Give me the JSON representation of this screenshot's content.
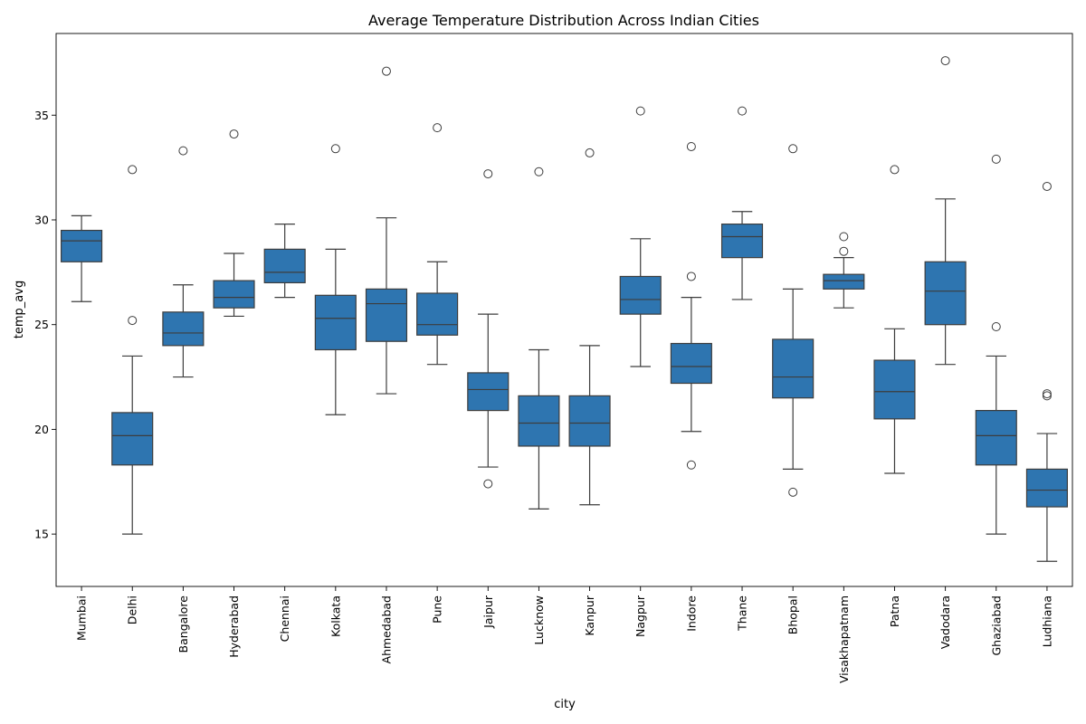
{
  "chart_data": {
    "type": "box",
    "title": "Average Temperature Distribution Across Indian Cities",
    "xlabel": "city",
    "ylabel": "temp_avg",
    "ylim": [
      12.5,
      38.9
    ],
    "yticks": [
      15,
      20,
      25,
      30,
      35
    ],
    "box_color": "#2e75b0",
    "line_color": "#3d3d3d",
    "grid": false,
    "categories": [
      "Mumbai",
      "Delhi",
      "Bangalore",
      "Hyderabad",
      "Chennai",
      "Kolkata",
      "Ahmedabad",
      "Pune",
      "Jaipur",
      "Lucknow",
      "Kanpur",
      "Nagpur",
      "Indore",
      "Thane",
      "Bhopal",
      "Visakhapatnam",
      "Patna",
      "Vadodara",
      "Ghaziabad",
      "Ludhiana"
    ],
    "boxes": [
      {
        "city": "Mumbai",
        "whisker_low": 26.1,
        "q1": 28.0,
        "median": 29.0,
        "q3": 29.5,
        "whisker_high": 30.2,
        "outliers": []
      },
      {
        "city": "Delhi",
        "whisker_low": 15.0,
        "q1": 18.3,
        "median": 19.7,
        "q3": 20.8,
        "whisker_high": 23.5,
        "outliers": [
          25.2,
          32.4
        ]
      },
      {
        "city": "Bangalore",
        "whisker_low": 22.5,
        "q1": 24.0,
        "median": 24.6,
        "q3": 25.6,
        "whisker_high": 26.9,
        "outliers": [
          33.3
        ]
      },
      {
        "city": "Hyderabad",
        "whisker_low": 25.4,
        "q1": 25.8,
        "median": 26.3,
        "q3": 27.1,
        "whisker_high": 28.4,
        "outliers": [
          34.1
        ]
      },
      {
        "city": "Chennai",
        "whisker_low": 26.3,
        "q1": 27.0,
        "median": 27.5,
        "q3": 28.6,
        "whisker_high": 29.8,
        "outliers": []
      },
      {
        "city": "Kolkata",
        "whisker_low": 20.7,
        "q1": 23.8,
        "median": 25.3,
        "q3": 26.4,
        "whisker_high": 28.6,
        "outliers": [
          33.4
        ]
      },
      {
        "city": "Ahmedabad",
        "whisker_low": 21.7,
        "q1": 24.2,
        "median": 26.0,
        "q3": 26.7,
        "whisker_high": 30.1,
        "outliers": [
          37.1
        ]
      },
      {
        "city": "Pune",
        "whisker_low": 23.1,
        "q1": 24.5,
        "median": 25.0,
        "q3": 26.5,
        "whisker_high": 28.0,
        "outliers": [
          34.4
        ]
      },
      {
        "city": "Jaipur",
        "whisker_low": 18.2,
        "q1": 20.9,
        "median": 21.9,
        "q3": 22.7,
        "whisker_high": 25.5,
        "outliers": [
          17.4,
          32.2
        ]
      },
      {
        "city": "Lucknow",
        "whisker_low": 16.2,
        "q1": 19.2,
        "median": 20.3,
        "q3": 21.6,
        "whisker_high": 23.8,
        "outliers": [
          32.3
        ]
      },
      {
        "city": "Kanpur",
        "whisker_low": 16.4,
        "q1": 19.2,
        "median": 20.3,
        "q3": 21.6,
        "whisker_high": 24.0,
        "outliers": [
          33.2
        ]
      },
      {
        "city": "Nagpur",
        "whisker_low": 23.0,
        "q1": 25.5,
        "median": 26.2,
        "q3": 27.3,
        "whisker_high": 29.1,
        "outliers": [
          35.2
        ]
      },
      {
        "city": "Indore",
        "whisker_low": 19.9,
        "q1": 22.2,
        "median": 23.0,
        "q3": 24.1,
        "whisker_high": 26.3,
        "outliers": [
          18.3,
          27.3,
          33.5
        ]
      },
      {
        "city": "Thane",
        "whisker_low": 26.2,
        "q1": 28.2,
        "median": 29.2,
        "q3": 29.8,
        "whisker_high": 30.4,
        "outliers": [
          35.2
        ]
      },
      {
        "city": "Bhopal",
        "whisker_low": 18.1,
        "q1": 21.5,
        "median": 22.5,
        "q3": 24.3,
        "whisker_high": 26.7,
        "outliers": [
          17.0,
          33.4
        ]
      },
      {
        "city": "Visakhapatnam",
        "whisker_low": 25.8,
        "q1": 26.7,
        "median": 27.1,
        "q3": 27.4,
        "whisker_high": 28.2,
        "outliers": [
          28.5,
          29.2
        ]
      },
      {
        "city": "Patna",
        "whisker_low": 17.9,
        "q1": 20.5,
        "median": 21.8,
        "q3": 23.3,
        "whisker_high": 24.8,
        "outliers": [
          32.4
        ]
      },
      {
        "city": "Vadodara",
        "whisker_low": 23.1,
        "q1": 25.0,
        "median": 26.6,
        "q3": 28.0,
        "whisker_high": 31.0,
        "outliers": [
          37.6
        ]
      },
      {
        "city": "Ghaziabad",
        "whisker_low": 15.0,
        "q1": 18.3,
        "median": 19.7,
        "q3": 20.9,
        "whisker_high": 23.5,
        "outliers": [
          24.9,
          32.9
        ]
      },
      {
        "city": "Ludhiana",
        "whisker_low": 13.7,
        "q1": 16.3,
        "median": 17.1,
        "q3": 18.1,
        "whisker_high": 19.8,
        "outliers": [
          21.6,
          21.7,
          31.6
        ]
      }
    ]
  }
}
